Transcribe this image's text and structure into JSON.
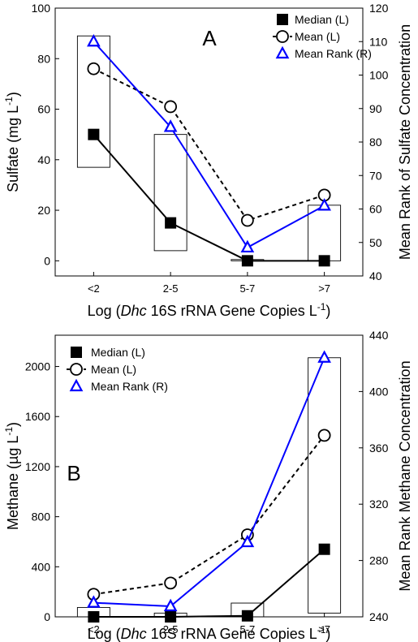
{
  "chart_data": [
    {
      "type": "line",
      "panel_label": "A",
      "categories": [
        "<2",
        "2-5",
        "5-7",
        ">7"
      ],
      "xlabel_parts": [
        "Log (",
        "Dhc",
        " 16S rRNA Gene Copies L",
        "-1",
        ")"
      ],
      "ylabel_parts": [
        "Sulfate (mg L",
        "-1",
        ")"
      ],
      "y2label": "Mean Rank of Sulfate Concentration",
      "ylim": [
        -6,
        100
      ],
      "yticks": [
        0,
        20,
        40,
        60,
        80,
        100
      ],
      "y2lim": [
        40,
        120
      ],
      "y2ticks": [
        40,
        50,
        60,
        70,
        80,
        90,
        100,
        110,
        120
      ],
      "legend_position": "top-right",
      "grid": false,
      "series": [
        {
          "name": "Median (L)",
          "axis": "left",
          "marker": "square",
          "style": "solid",
          "color": "#000000",
          "values": [
            50,
            15,
            0,
            0
          ]
        },
        {
          "name": "Mean (L)",
          "axis": "left",
          "marker": "circle",
          "style": "dashed",
          "color": "#000000",
          "values": [
            76,
            61,
            16,
            26
          ]
        },
        {
          "name": "Mean Rank (R)",
          "axis": "right",
          "marker": "triangle",
          "style": "solid",
          "color": "#0000ff",
          "values": [
            110,
            84.5,
            48.5,
            61
          ]
        }
      ],
      "boxes": [
        {
          "category": "<2",
          "low": 37,
          "high": 89
        },
        {
          "category": "2-5",
          "low": 4,
          "high": 50
        },
        {
          "category": "5-7",
          "low": 0,
          "high": 0.5
        },
        {
          "category": ">7",
          "low": 0,
          "high": 22
        }
      ]
    },
    {
      "type": "line",
      "panel_label": "B",
      "categories": [
        "<2",
        "2-5",
        "5-7",
        ">7"
      ],
      "xlabel_parts": [
        "Log (",
        "Dhc",
        " 16S rRNA Gene Copies L",
        "-1",
        ")"
      ],
      "ylabel_parts": [
        "Methane (µg L",
        "-1",
        ")"
      ],
      "y2label": "Mean Rank Methane Concentration",
      "ylim": [
        0,
        2250
      ],
      "yticks": [
        0,
        400,
        800,
        1200,
        1600,
        2000
      ],
      "y2lim": [
        240,
        440
      ],
      "y2ticks": [
        240,
        280,
        320,
        360,
        400,
        440
      ],
      "legend_position": "top-left",
      "grid": false,
      "series": [
        {
          "name": "Median (L)",
          "axis": "left",
          "marker": "square",
          "style": "solid",
          "color": "#000000",
          "values": [
            0,
            0,
            8,
            540
          ]
        },
        {
          "name": "Mean (L)",
          "axis": "left",
          "marker": "circle",
          "style": "dashed",
          "color": "#000000",
          "values": [
            180,
            270,
            655,
            1450
          ]
        },
        {
          "name": "Mean Rank (R)",
          "axis": "right",
          "marker": "triangle",
          "style": "solid",
          "color": "#0000ff",
          "values": [
            250,
            247.5,
            293,
            424
          ]
        }
      ],
      "boxes": [
        {
          "category": "<2",
          "low": 0,
          "high": 75
        },
        {
          "category": "2-5",
          "low": 0,
          "high": 30
        },
        {
          "category": "5-7",
          "low": 0,
          "high": 110
        },
        {
          "category": ">7",
          "low": 30,
          "high": 2070
        }
      ]
    }
  ]
}
